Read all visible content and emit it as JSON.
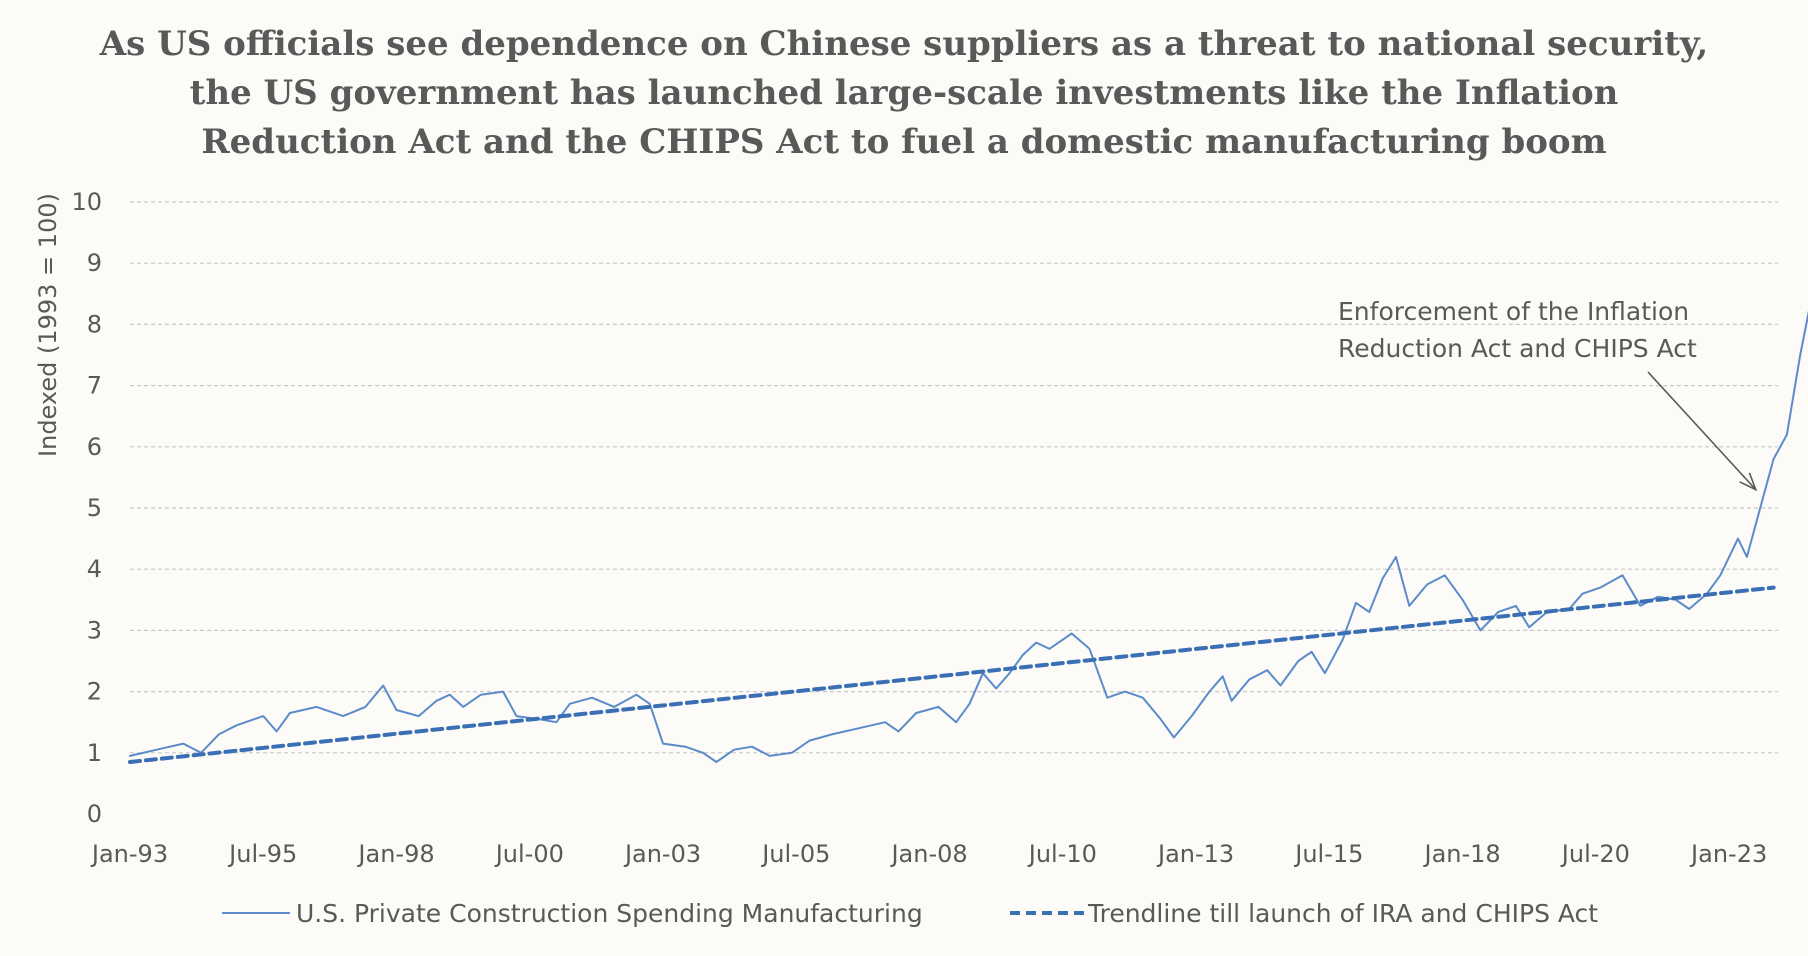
{
  "chart_data": {
    "type": "line",
    "title_lines": [
      "As US officials see dependence on Chinese suppliers as a threat to national security,",
      "the US government has launched large-scale investments like the Inflation",
      "Reduction Act and the CHIPS Act to fuel a domestic manufacturing boom"
    ],
    "xlabel": "",
    "ylabel": "Indexed (1993 = 100)",
    "ylim": [
      0,
      10
    ],
    "yticks": [
      "0",
      "1",
      "2",
      "3",
      "4",
      "5",
      "6",
      "7",
      "8",
      "9",
      "10"
    ],
    "xlim": [
      "1993-01",
      "2023-12"
    ],
    "xticks": [
      {
        "date": "1993-01",
        "label": "Jan-93"
      },
      {
        "date": "1995-07",
        "label": "Jul-95"
      },
      {
        "date": "1998-01",
        "label": "Jan-98"
      },
      {
        "date": "2000-07",
        "label": "Jul-00"
      },
      {
        "date": "2003-01",
        "label": "Jan-03"
      },
      {
        "date": "2005-07",
        "label": "Jul-05"
      },
      {
        "date": "2008-01",
        "label": "Jan-08"
      },
      {
        "date": "2010-07",
        "label": "Jul-10"
      },
      {
        "date": "2013-01",
        "label": "Jan-13"
      },
      {
        "date": "2015-07",
        "label": "Jul-15"
      },
      {
        "date": "2018-01",
        "label": "Jan-18"
      },
      {
        "date": "2020-07",
        "label": "Jul-20"
      },
      {
        "date": "2023-01",
        "label": "Jan-23"
      }
    ],
    "grid": "horizontal-dashed",
    "legend_position": "bottom",
    "series": [
      {
        "name": "U.S. Private Construction Spending Manufacturing",
        "style": "solid",
        "color": "#5b8cc9",
        "points": [
          [
            "1993-01",
            0.95
          ],
          [
            "1993-07",
            1.05
          ],
          [
            "1994-01",
            1.15
          ],
          [
            "1994-05",
            1.0
          ],
          [
            "1994-09",
            1.3
          ],
          [
            "1995-01",
            1.45
          ],
          [
            "1995-07",
            1.6
          ],
          [
            "1995-10",
            1.35
          ],
          [
            "1996-01",
            1.65
          ],
          [
            "1996-07",
            1.75
          ],
          [
            "1997-01",
            1.6
          ],
          [
            "1997-06",
            1.75
          ],
          [
            "1997-10",
            2.1
          ],
          [
            "1998-01",
            1.7
          ],
          [
            "1998-06",
            1.6
          ],
          [
            "1998-10",
            1.85
          ],
          [
            "1999-01",
            1.95
          ],
          [
            "1999-04",
            1.75
          ],
          [
            "1999-08",
            1.95
          ],
          [
            "2000-01",
            2.0
          ],
          [
            "2000-04",
            1.6
          ],
          [
            "2000-09",
            1.55
          ],
          [
            "2001-01",
            1.5
          ],
          [
            "2001-04",
            1.8
          ],
          [
            "2001-09",
            1.9
          ],
          [
            "2002-02",
            1.75
          ],
          [
            "2002-07",
            1.95
          ],
          [
            "2002-10",
            1.8
          ],
          [
            "2003-01",
            1.15
          ],
          [
            "2003-06",
            1.1
          ],
          [
            "2003-10",
            1.0
          ],
          [
            "2004-01",
            0.85
          ],
          [
            "2004-05",
            1.05
          ],
          [
            "2004-09",
            1.1
          ],
          [
            "2005-01",
            0.95
          ],
          [
            "2005-06",
            1.0
          ],
          [
            "2005-10",
            1.2
          ],
          [
            "2006-03",
            1.3
          ],
          [
            "2006-09",
            1.4
          ],
          [
            "2007-03",
            1.5
          ],
          [
            "2007-06",
            1.35
          ],
          [
            "2007-10",
            1.65
          ],
          [
            "2008-03",
            1.75
          ],
          [
            "2008-07",
            1.5
          ],
          [
            "2008-10",
            1.8
          ],
          [
            "2009-01",
            2.3
          ],
          [
            "2009-04",
            2.05
          ],
          [
            "2009-07",
            2.3
          ],
          [
            "2009-10",
            2.6
          ],
          [
            "2010-01",
            2.8
          ],
          [
            "2010-04",
            2.7
          ],
          [
            "2010-09",
            2.95
          ],
          [
            "2011-01",
            2.7
          ],
          [
            "2011-05",
            1.9
          ],
          [
            "2011-09",
            2.0
          ],
          [
            "2012-01",
            1.9
          ],
          [
            "2012-05",
            1.55
          ],
          [
            "2012-08",
            1.25
          ],
          [
            "2012-12",
            1.6
          ],
          [
            "2013-04",
            2.0
          ],
          [
            "2013-07",
            2.25
          ],
          [
            "2013-09",
            1.85
          ],
          [
            "2014-01",
            2.2
          ],
          [
            "2014-05",
            2.35
          ],
          [
            "2014-08",
            2.1
          ],
          [
            "2014-12",
            2.5
          ],
          [
            "2015-03",
            2.65
          ],
          [
            "2015-06",
            2.3
          ],
          [
            "2015-10",
            2.85
          ],
          [
            "2016-01",
            3.45
          ],
          [
            "2016-04",
            3.3
          ],
          [
            "2016-07",
            3.85
          ],
          [
            "2016-10",
            4.2
          ],
          [
            "2017-01",
            3.4
          ],
          [
            "2017-05",
            3.75
          ],
          [
            "2017-09",
            3.9
          ],
          [
            "2018-01",
            3.5
          ],
          [
            "2018-05",
            3.0
          ],
          [
            "2018-09",
            3.3
          ],
          [
            "2019-01",
            3.4
          ],
          [
            "2019-04",
            3.05
          ],
          [
            "2019-08",
            3.3
          ],
          [
            "2020-01",
            3.35
          ],
          [
            "2020-04",
            3.6
          ],
          [
            "2020-08",
            3.7
          ],
          [
            "2021-01",
            3.9
          ],
          [
            "2021-05",
            3.4
          ],
          [
            "2021-09",
            3.55
          ],
          [
            "2022-01",
            3.5
          ],
          [
            "2022-04",
            3.35
          ],
          [
            "2022-08",
            3.6
          ],
          [
            "2022-11",
            3.9
          ],
          [
            "2023-03",
            4.5
          ],
          [
            "2023-05",
            4.2
          ],
          [
            "2023-08",
            5.0
          ],
          [
            "2023-11",
            5.8
          ],
          [
            "2024-02",
            6.2
          ],
          [
            "2024-05",
            7.5
          ],
          [
            "2024-08",
            8.6
          ],
          [
            "2024-10",
            8.75
          ]
        ]
      },
      {
        "name": "Trendline till launch of IRA and CHIPS Act",
        "style": "dashed",
        "color": "#3a6fb5",
        "points": [
          [
            "1993-01",
            0.85
          ],
          [
            "2023-11",
            3.7
          ]
        ]
      }
    ],
    "annotations": [
      {
        "text_lines": [
          "Enforcement of the Inflation",
          "Reduction Act and CHIPS Act"
        ],
        "arrow_to": [
          "2023-07",
          5.3
        ]
      }
    ]
  }
}
